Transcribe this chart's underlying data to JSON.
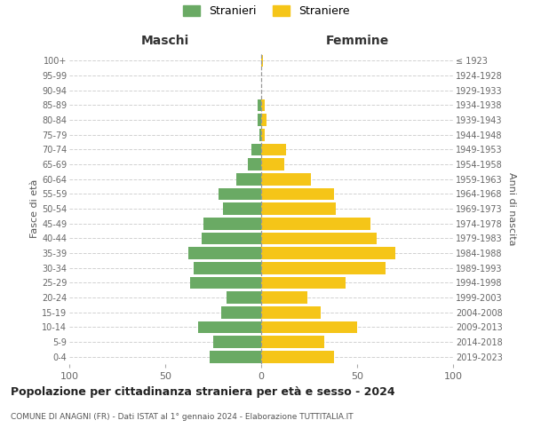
{
  "age_groups": [
    "0-4",
    "5-9",
    "10-14",
    "15-19",
    "20-24",
    "25-29",
    "30-34",
    "35-39",
    "40-44",
    "45-49",
    "50-54",
    "55-59",
    "60-64",
    "65-69",
    "70-74",
    "75-79",
    "80-84",
    "85-89",
    "90-94",
    "95-99",
    "100+"
  ],
  "birth_years": [
    "2019-2023",
    "2014-2018",
    "2009-2013",
    "2004-2008",
    "1999-2003",
    "1994-1998",
    "1989-1993",
    "1984-1988",
    "1979-1983",
    "1974-1978",
    "1969-1973",
    "1964-1968",
    "1959-1963",
    "1954-1958",
    "1949-1953",
    "1944-1948",
    "1939-1943",
    "1934-1938",
    "1929-1933",
    "1924-1928",
    "≤ 1923"
  ],
  "maschi": [
    27,
    25,
    33,
    21,
    18,
    37,
    35,
    38,
    31,
    30,
    20,
    22,
    13,
    7,
    5,
    1,
    2,
    2,
    0,
    0,
    0
  ],
  "femmine": [
    38,
    33,
    50,
    31,
    24,
    44,
    65,
    70,
    60,
    57,
    39,
    38,
    26,
    12,
    13,
    2,
    3,
    2,
    0,
    0,
    1
  ],
  "maschi_color": "#6aaa64",
  "femmine_color": "#f5c518",
  "background_color": "#ffffff",
  "grid_color": "#cccccc",
  "title": "Popolazione per cittadinanza straniera per età e sesso - 2024",
  "subtitle": "COMUNE DI ANAGNI (FR) - Dati ISTAT al 1° gennaio 2024 - Elaborazione TUTTITALIA.IT",
  "xlabel_left": "Maschi",
  "xlabel_right": "Femmine",
  "ylabel_left": "Fasce di età",
  "ylabel_right": "Anni di nascita",
  "legend_stranieri": "Stranieri",
  "legend_straniere": "Straniere",
  "xlim": 100,
  "xticks": [
    -100,
    -50,
    0,
    50,
    100
  ],
  "xticklabels": [
    "100",
    "50",
    "0",
    "50",
    "100"
  ]
}
